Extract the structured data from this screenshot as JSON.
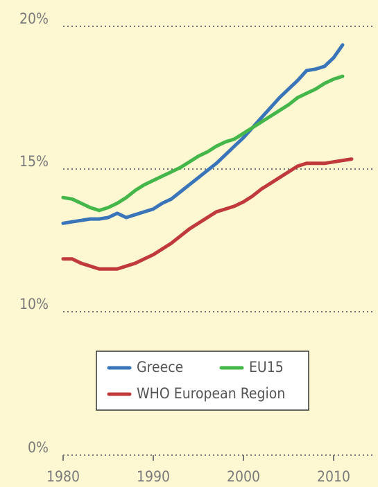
{
  "chart_data": {
    "type": "line",
    "x": [
      1980,
      1981,
      1982,
      1983,
      1984,
      1985,
      1986,
      1987,
      1988,
      1989,
      1990,
      1991,
      1992,
      1993,
      1994,
      1995,
      1996,
      1997,
      1998,
      1999,
      2000,
      2001,
      2002,
      2003,
      2004,
      2005,
      2006,
      2007,
      2008,
      2009,
      2010,
      2011,
      2012
    ],
    "series": [
      {
        "name": "Greece",
        "color": "#3a75b9",
        "values": [
          13.1,
          13.15,
          13.2,
          13.25,
          13.25,
          13.3,
          13.45,
          13.3,
          13.4,
          13.5,
          13.6,
          13.8,
          13.95,
          14.2,
          14.45,
          14.7,
          14.95,
          15.2,
          15.5,
          15.8,
          16.1,
          16.45,
          16.8,
          17.15,
          17.5,
          17.8,
          18.1,
          18.45,
          18.5,
          18.6,
          18.9,
          19.35,
          null
        ]
      },
      {
        "name": "EU15",
        "color": "#45b649",
        "values": [
          14.0,
          13.95,
          13.8,
          13.65,
          13.55,
          13.65,
          13.8,
          14.0,
          14.25,
          14.45,
          14.6,
          14.75,
          14.9,
          15.05,
          15.25,
          15.45,
          15.6,
          15.8,
          15.95,
          16.05,
          16.25,
          16.45,
          16.65,
          16.85,
          17.05,
          17.25,
          17.5,
          17.65,
          17.8,
          18.0,
          18.15,
          18.25,
          null
        ]
      },
      {
        "name": "WHO European Region",
        "color": "#c0393b",
        "values": [
          11.85,
          11.85,
          11.7,
          11.6,
          11.5,
          11.5,
          11.5,
          11.6,
          11.7,
          11.85,
          12.0,
          12.2,
          12.4,
          12.65,
          12.9,
          13.1,
          13.3,
          13.5,
          13.6,
          13.7,
          13.85,
          14.05,
          14.3,
          14.5,
          14.7,
          14.9,
          15.1,
          15.2,
          15.2,
          15.2,
          15.25,
          15.3,
          15.35
        ]
      }
    ],
    "xlim": [
      1980,
      2014
    ],
    "xticks": [
      1980,
      1990,
      2000,
      2010
    ],
    "ylim": [
      0,
      20
    ],
    "y_break": [
      0,
      10
    ],
    "yticks": [
      {
        "value": 0,
        "label": "0%"
      },
      {
        "value": 10,
        "label": "10%"
      },
      {
        "value": 15,
        "label": "15%"
      },
      {
        "value": 20,
        "label": "20%"
      }
    ],
    "grid": true,
    "legend": "bottom-center"
  }
}
